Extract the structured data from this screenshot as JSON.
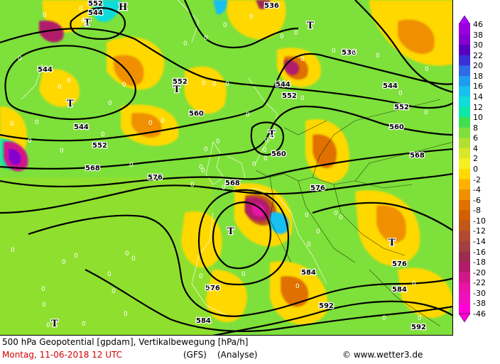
{
  "header": {
    "title_line": "500 hPa Geopotential [gpdam], Vertikalbewegung [hPa/h]",
    "date_line": "Montag, 11-06-2018  12 UTC",
    "model": "(GFS)",
    "mode": "(Analyse)",
    "copyright": "© www.wetter3.de"
  },
  "legend": {
    "labels": [
      "46",
      "38",
      "30",
      "22",
      "20",
      "18",
      "16",
      "14",
      "12",
      "10",
      "8",
      "6",
      "4",
      "2",
      "0",
      "-2",
      "-4",
      "-6",
      "-8",
      "-10",
      "-12",
      "-14",
      "-16",
      "-18",
      "-20",
      "-22",
      "-30",
      "-38",
      "-46"
    ],
    "colors": [
      "#b000ff",
      "#9a00e0",
      "#8400d0",
      "#5800c0",
      "#3b2fd8",
      "#2f6ae8",
      "#1f9cf0",
      "#18c0f0",
      "#10dcd8",
      "#10e8a8",
      "#3ee050",
      "#7ee03a",
      "#b0e030",
      "#d8e828",
      "#f6f020",
      "#ffd800",
      "#ffb000",
      "#f09000",
      "#e07000",
      "#d06000",
      "#c05818",
      "#b04a30",
      "#a04040",
      "#9c2c50",
      "#b01c6a",
      "#d01888",
      "#e814a8",
      "#f010c0",
      "#ff00d8"
    ]
  },
  "map": {
    "isohypse_labels": [
      "552",
      "544",
      "536",
      "560",
      "568",
      "576",
      "584",
      "592"
    ],
    "placed_labels": [
      {
        "text": "552",
        "kind": "label"
      },
      {
        "text": "544",
        "kind": "label"
      },
      {
        "text": "536",
        "kind": "label"
      },
      {
        "text": "544",
        "kind": "label"
      },
      {
        "text": "552",
        "kind": "label"
      },
      {
        "text": "544",
        "kind": "label"
      },
      {
        "text": "552",
        "kind": "label"
      },
      {
        "text": "552",
        "kind": "label"
      },
      {
        "text": "544",
        "kind": "label"
      },
      {
        "text": "560",
        "kind": "label"
      },
      {
        "text": "552",
        "kind": "label"
      },
      {
        "text": "544",
        "kind": "label"
      },
      {
        "text": "560",
        "kind": "label"
      },
      {
        "text": "568",
        "kind": "label"
      },
      {
        "text": "576",
        "kind": "label"
      },
      {
        "text": "560",
        "kind": "label"
      },
      {
        "text": "568",
        "kind": "label"
      },
      {
        "text": "568",
        "kind": "label"
      },
      {
        "text": "576",
        "kind": "label"
      },
      {
        "text": "576",
        "kind": "label"
      },
      {
        "text": "584",
        "kind": "label"
      },
      {
        "text": "576",
        "kind": "label"
      },
      {
        "text": "584",
        "kind": "label"
      },
      {
        "text": "584",
        "kind": "label"
      },
      {
        "text": "592",
        "kind": "label"
      },
      {
        "text": "592",
        "kind": "label"
      },
      {
        "text": "536",
        "kind": "label"
      }
    ],
    "pressure_centers": [
      "T",
      "T",
      "T",
      "T",
      "T",
      "T",
      "T",
      "T",
      "H"
    ]
  }
}
